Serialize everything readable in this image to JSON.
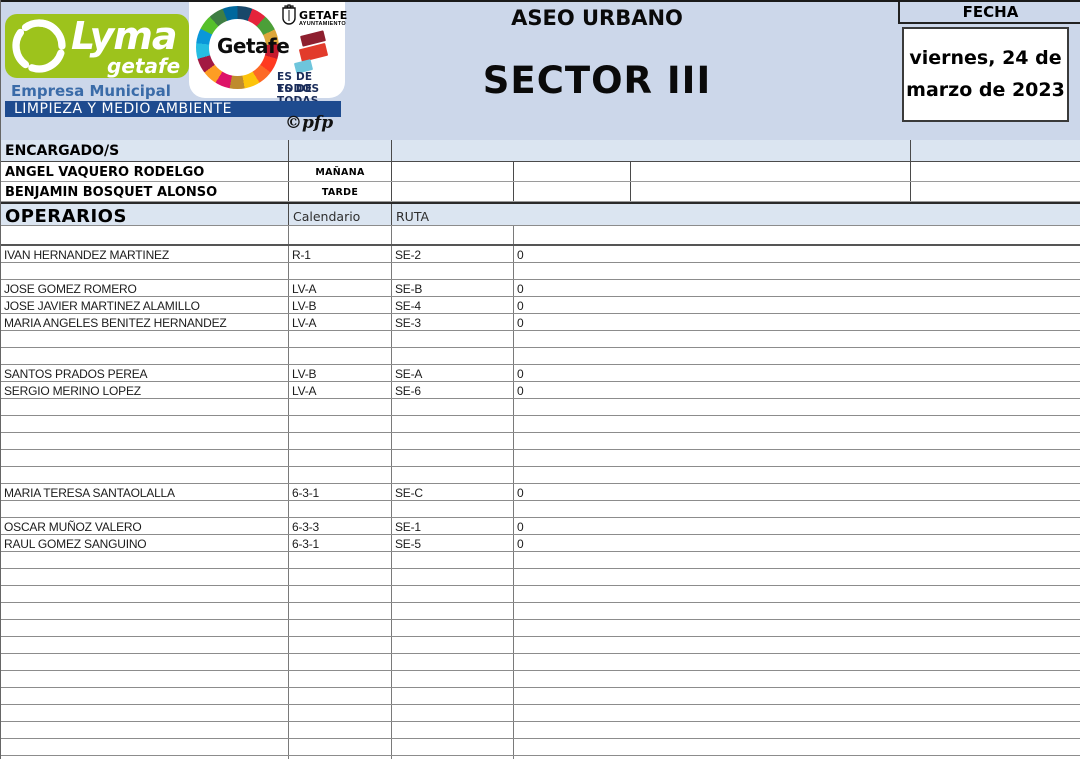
{
  "header": {
    "lyma": {
      "brand": "Lyma",
      "brand_sub": "getafe",
      "empresa": "Empresa Municipal",
      "bar_text": "LIMPIEZA Y MEDIO AMBIENTE",
      "credit": "©pfp",
      "green_color": "#9dc31c",
      "bar_color": "#1e4b8f"
    },
    "getafe": {
      "circle_label": "Getafe",
      "city": "GETAFE",
      "org": "AYUNTAMIENTO",
      "slogan_line1": "ES DE TODOS",
      "slogan_line2": "ES DE TODAS",
      "slogan_color": "#1b2d5a"
    },
    "title": "ASEO URBANO",
    "subtitle": "SECTOR III",
    "fecha_label": "FECHA",
    "date_line1": "viernes, 24 de",
    "date_line2": "marzo de 2023"
  },
  "encargados": {
    "header_label": "ENCARGADO/S",
    "rows": [
      {
        "name": "ANGEL VAQUERO RODELGO",
        "shift": "MAÑANA"
      },
      {
        "name": "BENJAMIN BOSQUET ALONSO",
        "shift": "TARDE"
      }
    ]
  },
  "operarios": {
    "header_label": "OPERARIOS",
    "col_calendario": "Calendario",
    "col_ruta": "RUTA",
    "rows": [
      {
        "name": "",
        "cal": "",
        "ruta": "",
        "val": ""
      },
      {
        "name": "IVAN HERNANDEZ MARTINEZ",
        "cal": "R-1",
        "ruta": "SE-2",
        "val": "0"
      },
      {
        "name": "",
        "cal": "",
        "ruta": "",
        "val": ""
      },
      {
        "name": "JOSE GOMEZ ROMERO",
        "cal": "LV-A",
        "ruta": "SE-B",
        "val": "0"
      },
      {
        "name": "JOSE JAVIER MARTINEZ ALAMILLO",
        "cal": "LV-B",
        "ruta": "SE-4",
        "val": "0"
      },
      {
        "name": "MARIA ANGELES BENITEZ HERNANDEZ",
        "cal": "LV-A",
        "ruta": "SE-3",
        "val": "0"
      },
      {
        "name": "",
        "cal": "",
        "ruta": "",
        "val": ""
      },
      {
        "name": "",
        "cal": "",
        "ruta": "",
        "val": ""
      },
      {
        "name": "SANTOS PRADOS PEREA",
        "cal": "LV-B",
        "ruta": "SE-A",
        "val": "0"
      },
      {
        "name": "SERGIO MERINO LOPEZ",
        "cal": "LV-A",
        "ruta": "SE-6",
        "val": "0"
      },
      {
        "name": "",
        "cal": "",
        "ruta": "",
        "val": ""
      },
      {
        "name": "",
        "cal": "",
        "ruta": "",
        "val": ""
      },
      {
        "name": "",
        "cal": "",
        "ruta": "",
        "val": ""
      },
      {
        "name": "",
        "cal": "",
        "ruta": "",
        "val": ""
      },
      {
        "name": "",
        "cal": "",
        "ruta": "",
        "val": ""
      },
      {
        "name": "MARIA TERESA SANTAOLALLA",
        "cal": "6-3-1",
        "ruta": "SE-C",
        "val": "0"
      },
      {
        "name": "",
        "cal": "",
        "ruta": "",
        "val": ""
      },
      {
        "name": "OSCAR MUÑOZ VALERO",
        "cal": "6-3-3",
        "ruta": "SE-1",
        "val": "0"
      },
      {
        "name": "RAUL GOMEZ SANGUINO",
        "cal": "6-3-1",
        "ruta": "SE-5",
        "val": "0"
      },
      {
        "name": "",
        "cal": "",
        "ruta": "",
        "val": ""
      },
      {
        "name": "",
        "cal": "",
        "ruta": "",
        "val": ""
      },
      {
        "name": "",
        "cal": "",
        "ruta": "",
        "val": ""
      },
      {
        "name": "",
        "cal": "",
        "ruta": "",
        "val": ""
      },
      {
        "name": "",
        "cal": "",
        "ruta": "",
        "val": ""
      },
      {
        "name": "",
        "cal": "",
        "ruta": "",
        "val": ""
      },
      {
        "name": "",
        "cal": "",
        "ruta": "",
        "val": ""
      },
      {
        "name": "",
        "cal": "",
        "ruta": "",
        "val": ""
      },
      {
        "name": "",
        "cal": "",
        "ruta": "",
        "val": ""
      },
      {
        "name": "",
        "cal": "",
        "ruta": "",
        "val": ""
      },
      {
        "name": "",
        "cal": "",
        "ruta": "",
        "val": ""
      },
      {
        "name": "",
        "cal": "",
        "ruta": "",
        "val": ""
      },
      {
        "name": "",
        "cal": "",
        "ruta": "",
        "val": ""
      }
    ]
  }
}
